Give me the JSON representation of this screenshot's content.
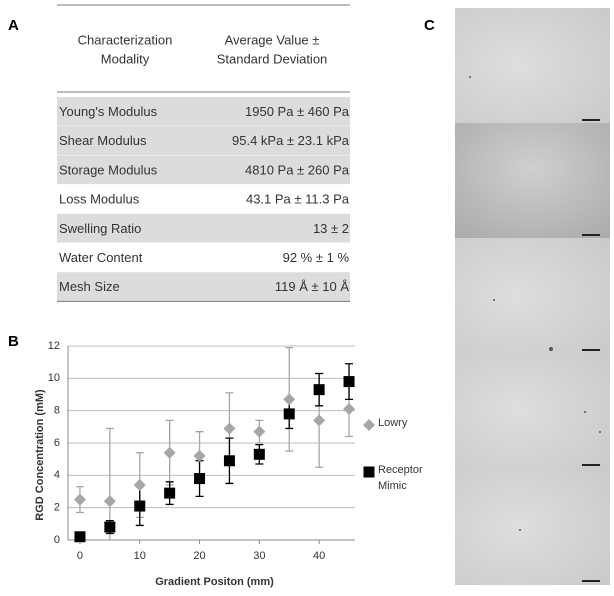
{
  "panels": {
    "a": "A",
    "b": "B",
    "c": "C"
  },
  "table": {
    "columns": [
      [
        "Characterization",
        "Modality"
      ],
      [
        "Average Value ±",
        "Standard Deviation"
      ]
    ],
    "rows": [
      [
        "Young's Modulus",
        "1950 Pa ± 460 Pa"
      ],
      [
        "Shear Modulus",
        "95.4 kPa ± 23.1 kPa"
      ],
      [
        "Storage Modulus",
        "4810 Pa ± 260 Pa"
      ],
      [
        "Loss Modulus",
        "43.1 Pa ± 11.3 Pa"
      ],
      [
        "Swelling Ratio",
        "13 ± 2"
      ],
      [
        "Water Content",
        "92 % ± 1 %"
      ],
      [
        "Mesh Size",
        "119 Å ± 10 Å"
      ]
    ]
  },
  "chart_data": {
    "type": "scatter",
    "x_label": "Gradient Positon (mm)",
    "y_label": "RGD Concentration (mM)",
    "x": [
      0,
      5,
      10,
      15,
      20,
      25,
      30,
      35,
      40,
      45
    ],
    "series": [
      {
        "name": "Lowry",
        "color": "#a6a6a6",
        "marker": "diamond",
        "values": [
          2.5,
          2.4,
          3.4,
          5.4,
          5.2,
          6.9,
          6.7,
          8.7,
          7.4,
          8.1
        ],
        "errors": [
          0.8,
          4.5,
          2.0,
          2.0,
          1.5,
          2.2,
          0.7,
          3.2,
          2.9,
          1.7
        ]
      },
      {
        "name": "Receptor Mimic",
        "color": "#000000",
        "marker": "square",
        "values": [
          0.2,
          0.8,
          2.1,
          2.9,
          3.8,
          4.9,
          5.3,
          7.8,
          9.3,
          9.8
        ],
        "errors": [
          0.1,
          0.4,
          1.2,
          0.7,
          1.1,
          1.4,
          0.6,
          0.9,
          1.0,
          1.1
        ]
      }
    ],
    "xlim": [
      -2,
      46
    ],
    "ylim": [
      0,
      12
    ],
    "xticks": [
      0,
      10,
      20,
      30,
      40
    ],
    "yticks": [
      0,
      2,
      4,
      6,
      8,
      10,
      12
    ],
    "grid": true
  }
}
